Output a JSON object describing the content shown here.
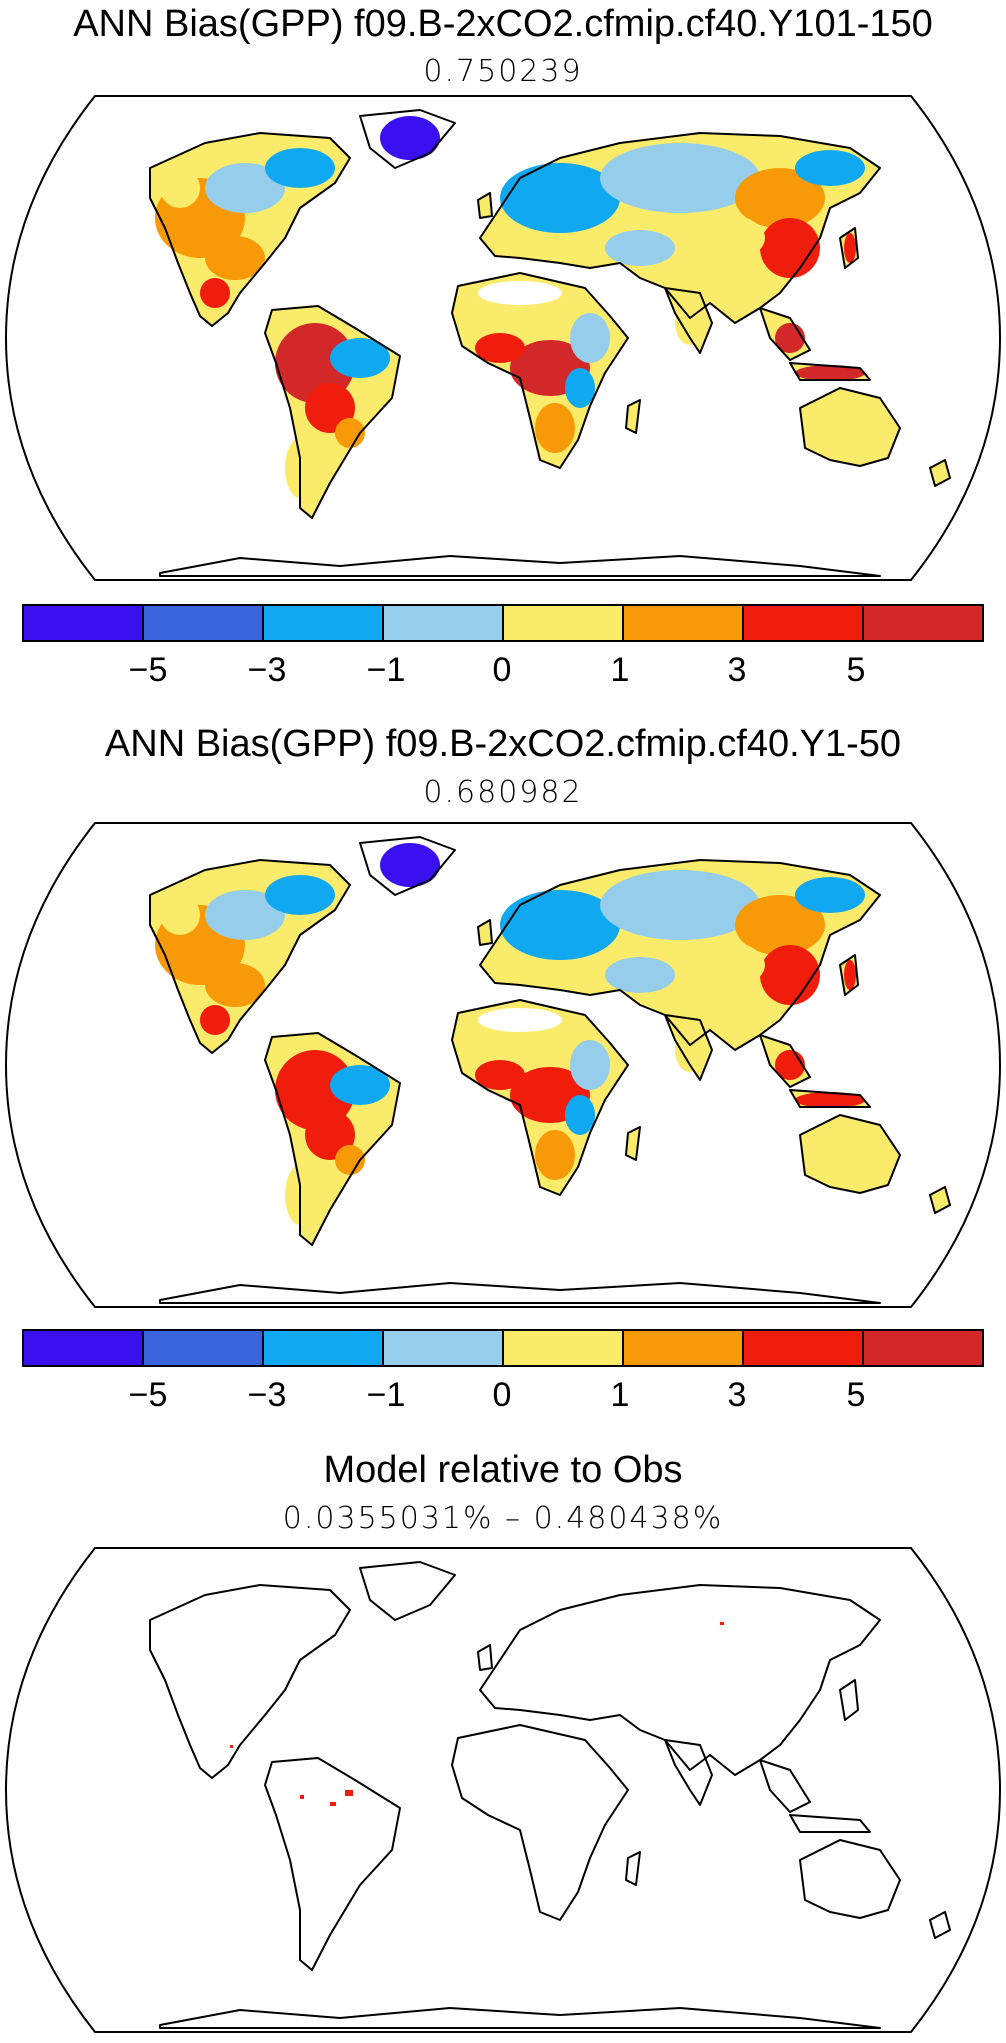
{
  "panels": [
    {
      "title": "ANN Bias(GPP) f09.B-2xCO2.cfmip.cf40.Y101-150",
      "subtitle": "0.750239"
    },
    {
      "title": "ANN Bias(GPP) f09.B-2xCO2.cfmip.cf40.Y1-50",
      "subtitle": "0.680982"
    },
    {
      "title": "Model relative to Obs",
      "subtitle": "0.0355031% – 0.480438%"
    }
  ],
  "colorbar": {
    "colors": [
      "#3a10f0",
      "#3a64dc",
      "#10a8f0",
      "#96cdea",
      "#fbeb6a",
      "#f89a08",
      "#f01c0c",
      "#d2282a"
    ],
    "tick_labels": [
      "−5",
      "−3",
      "−1",
      "0",
      "1",
      "3",
      "5"
    ]
  },
  "map": {
    "projection": "Robinson (global)",
    "colors": {
      "coast": "#000000",
      "ocean": "#ffffff"
    }
  },
  "chart_data": [
    {
      "type": "heatmap",
      "title": "ANN Bias(GPP) f09.B-2xCO2.cfmip.cf40.Y101-150",
      "subtitle": "0.750239",
      "color_levels": [
        -5,
        -3,
        -1,
        0,
        1,
        3,
        5
      ]
    },
    {
      "type": "heatmap",
      "title": "ANN Bias(GPP) f09.B-2xCO2.cfmip.cf40.Y1-50",
      "subtitle": "0.680982",
      "color_levels": [
        -5,
        -3,
        -1,
        0,
        1,
        3,
        5
      ]
    },
    {
      "type": "heatmap",
      "title": "Model relative to Obs",
      "subtitle": "0.0355031% – 0.480438%"
    }
  ]
}
